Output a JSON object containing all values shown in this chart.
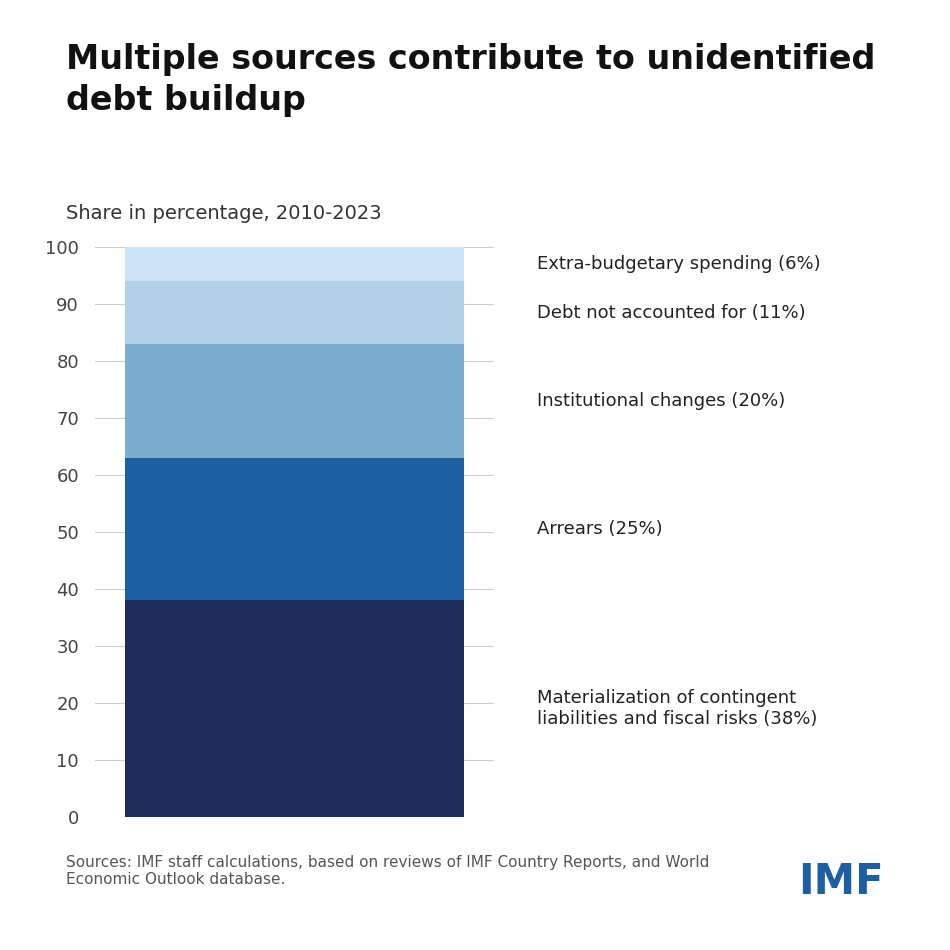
{
  "title": "Multiple sources contribute to unidentified\ndebt buildup",
  "subtitle": "Share in percentage, 2010-2023",
  "segments": [
    {
      "label": "Materialization of contingent\nliabilities and fiscal risks (38%)",
      "value": 38,
      "color": "#1c2d5e"
    },
    {
      "label": "Arrears (25%)",
      "value": 25,
      "color": "#1d5fa3"
    },
    {
      "label": "Institutional changes (20%)",
      "value": 20,
      "color": "#7aadd0"
    },
    {
      "label": "Debt not accounted for (11%)",
      "value": 11,
      "color": "#b3d0e8"
    },
    {
      "label": "Extra-budgetary spending (6%)",
      "value": 6,
      "color": "#cce4f5"
    }
  ],
  "ylim": [
    0,
    100
  ],
  "yticks": [
    0,
    10,
    20,
    30,
    40,
    50,
    60,
    70,
    80,
    90,
    100
  ],
  "source_text": "Sources: IMF staff calculations, based on reviews of IMF Country Reports, and World\nEconomic Outlook database.",
  "imf_text": "IMF",
  "background_color": "#ffffff",
  "title_fontsize": 24,
  "subtitle_fontsize": 14,
  "label_fontsize": 13,
  "source_fontsize": 11,
  "imf_color": "#1d5fa3",
  "text_color": "#222222",
  "source_color": "#555555",
  "grid_color": "#cccccc",
  "tick_fontsize": 13
}
